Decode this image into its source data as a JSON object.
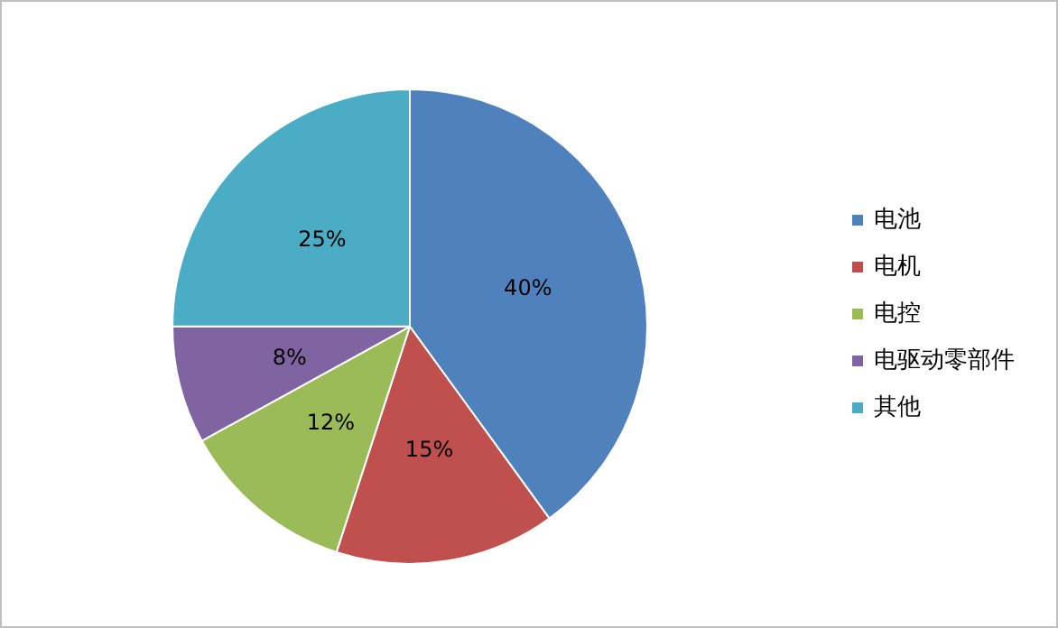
{
  "chart_data": {
    "type": "pie",
    "categories": [
      "电池",
      "电机",
      "电控",
      "电驱动零部件",
      "其他"
    ],
    "values": [
      40,
      15,
      12,
      8,
      25
    ],
    "value_labels": [
      "40%",
      "15%",
      "12%",
      "8%",
      "25%"
    ],
    "colors": [
      "#4f81bd",
      "#c0504d",
      "#9bbb59",
      "#8064a2",
      "#4bacc6"
    ],
    "legend": "right"
  }
}
